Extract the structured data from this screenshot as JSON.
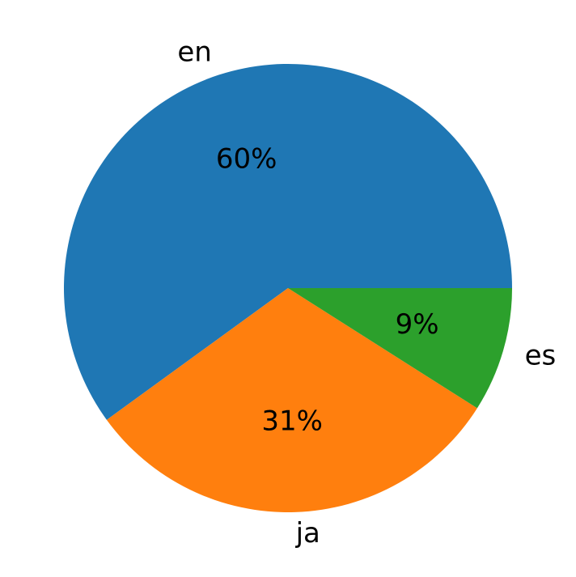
{
  "chart_data": {
    "type": "pie",
    "categories": [
      "en",
      "ja",
      "es"
    ],
    "values": [
      60,
      31,
      9
    ],
    "value_labels": [
      "60%",
      "31%",
      "9%"
    ],
    "colors": [
      "#1f77b4",
      "#ff7f0e",
      "#2ca02c"
    ],
    "start_angle": 0,
    "direction": "counterclockwise"
  }
}
